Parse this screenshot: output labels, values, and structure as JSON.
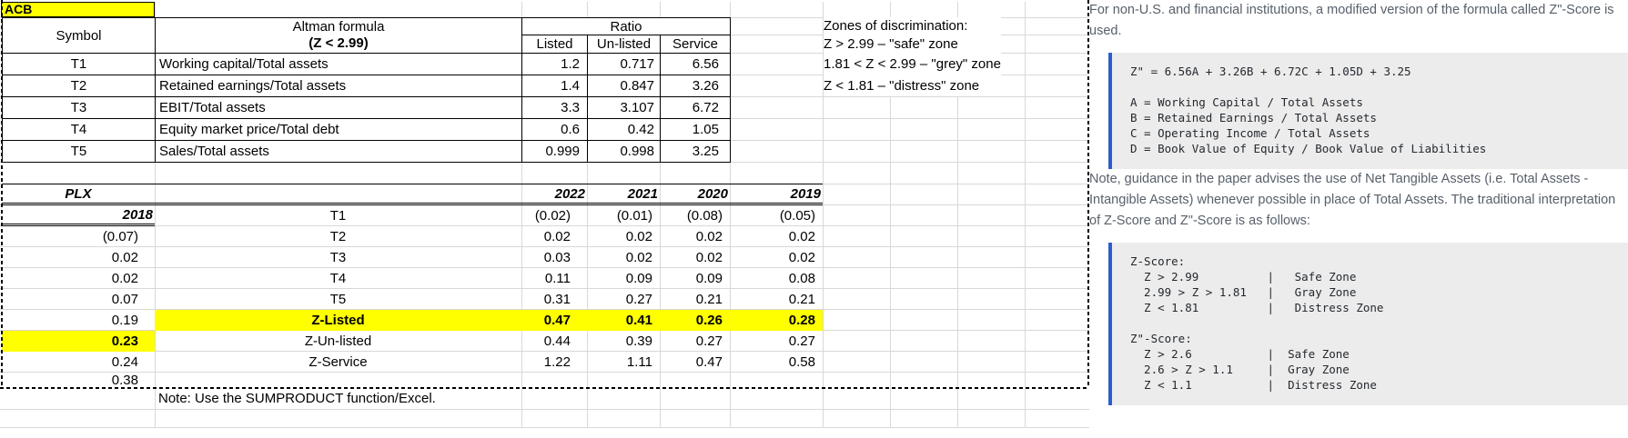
{
  "colors": {
    "highlight_yellow": "#ffff00",
    "code_accent_blue": "#2b5fce",
    "code_background": "#ececec",
    "gridline_grey": "#d8d8d8",
    "doc_text_grey": "#57606a"
  },
  "sheet": {
    "cell_ref": "ACB",
    "table1": {
      "headers": {
        "symbol": "Symbol",
        "formula_line1": "Altman formula",
        "formula_line2": "(Z < 2.99)",
        "ratio": "Ratio",
        "listed": "Listed",
        "unlisted": "Un-listed",
        "service": "Service"
      },
      "rows": [
        {
          "symbol": "T1",
          "formula": "Working capital/Total assets",
          "listed": "1.2",
          "unlisted": "0.717",
          "service": "6.56"
        },
        {
          "symbol": "T2",
          "formula": "Retained earnings/Total assets",
          "listed": "1.4",
          "unlisted": "0.847",
          "service": "3.26"
        },
        {
          "symbol": "T3",
          "formula": "EBIT/Total assets",
          "listed": "3.3",
          "unlisted": "3.107",
          "service": "6.72"
        },
        {
          "symbol": "T4",
          "formula": "Equity market price/Total debt",
          "listed": "0.6",
          "unlisted": "0.42",
          "service": "1.05"
        },
        {
          "symbol": "T5",
          "formula": "Sales/Total assets",
          "listed": "0.999",
          "unlisted": "0.998",
          "service": "3.25"
        }
      ]
    },
    "zones": {
      "title": "Zones of discrimination:",
      "lines": [
        "Z > 2.99 – \"safe\" zone",
        "1.81 < Z < 2.99 – \"grey\" zone",
        "Z < 1.81 – \"distress\" zone"
      ]
    },
    "table2": {
      "name": "PLX",
      "years": [
        "2022",
        "2021",
        "2020",
        "2019",
        "2018"
      ],
      "rows": [
        {
          "label": "T1",
          "highlight": false,
          "values": [
            "(0.02)",
            "(0.01)",
            "(0.08)",
            "(0.05)",
            "(0.07)"
          ]
        },
        {
          "label": "T2",
          "highlight": false,
          "values": [
            "0.02",
            "0.02",
            "0.02",
            "0.02",
            "0.02"
          ]
        },
        {
          "label": "T3",
          "highlight": false,
          "values": [
            "0.03",
            "0.02",
            "0.02",
            "0.02",
            "0.02"
          ]
        },
        {
          "label": "T4",
          "highlight": false,
          "values": [
            "0.11",
            "0.09",
            "0.09",
            "0.08",
            "0.07"
          ]
        },
        {
          "label": "T5",
          "highlight": false,
          "values": [
            "0.31",
            "0.27",
            "0.21",
            "0.21",
            "0.19"
          ]
        },
        {
          "label": "Z-Listed",
          "highlight": true,
          "values": [
            "0.47",
            "0.41",
            "0.26",
            "0.28",
            "0.23"
          ]
        },
        {
          "label": "Z-Un-listed",
          "highlight": false,
          "values": [
            "0.44",
            "0.39",
            "0.27",
            "0.27",
            "0.24"
          ]
        },
        {
          "label": "Z-Service",
          "highlight": false,
          "values": [
            "1.22",
            "1.11",
            "0.47",
            "0.58",
            "0.38"
          ]
        }
      ]
    },
    "note": "Note: Use the SUMPRODUCT function/Excel."
  },
  "docs": {
    "paragraph1": "For non-U.S. and financial institutions, a modified version of the formula called Z\"-Score is used.",
    "code1": "Z\" = 6.56A + 3.26B + 6.72C + 1.05D + 3.25\n\nA = Working Capital / Total Assets\nB = Retained Earnings / Total Assets\nC = Operating Income / Total Assets\nD = Book Value of Equity / Book Value of Liabilities",
    "paragraph2": "Note, guidance in the paper advises the use of Net Tangible Assets (i.e. Total Assets - Intangible Assets) whenever possible in place of Total Assets. The traditional interpretation of Z-Score and Z\"-Score is as follows:",
    "code2": "Z-Score:\n  Z > 2.99          |   Safe Zone\n  2.99 > Z > 1.81   |   Gray Zone\n  Z < 1.81          |   Distress Zone\n\nZ\"-Score:\n  Z > 2.6           |  Safe Zone\n  2.6 > Z > 1.1     |  Gray Zone\n  Z < 1.1           |  Distress Zone"
  }
}
